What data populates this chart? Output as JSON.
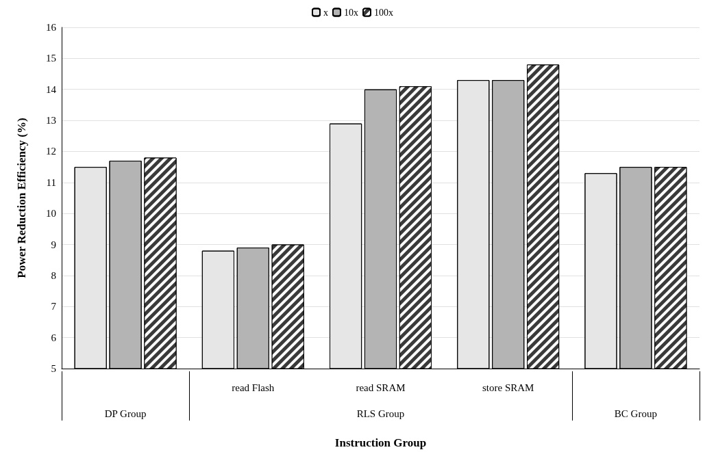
{
  "chart_data": {
    "type": "bar",
    "xlabel": "Instruction Group",
    "ylabel": "Power Reduction Efficiency (%)",
    "categories": [
      null,
      "read Flash",
      "read SRAM",
      "store SRAM",
      null
    ],
    "annotations": [
      "DP Group",
      "RLS Group",
      "BC Group"
    ],
    "series": [
      {
        "name": "x",
        "color": "#e6e6e6",
        "values": [
          11.5,
          8.8,
          12.9,
          14.3,
          11.3
        ]
      },
      {
        "name": "10x",
        "color": "#b4b4b4",
        "values": [
          11.7,
          8.9,
          14.0,
          14.3,
          11.5
        ]
      },
      {
        "name": "100x",
        "color": "#3a3a3a",
        "values": [
          11.8,
          9.0,
          14.1,
          14.8,
          11.5
        ]
      }
    ],
    "ylim": [
      5,
      16
    ],
    "yticks": [
      5,
      6,
      7,
      8,
      9,
      10,
      11,
      12,
      13,
      14,
      15,
      16
    ],
    "grid": "y",
    "legend": "top"
  }
}
